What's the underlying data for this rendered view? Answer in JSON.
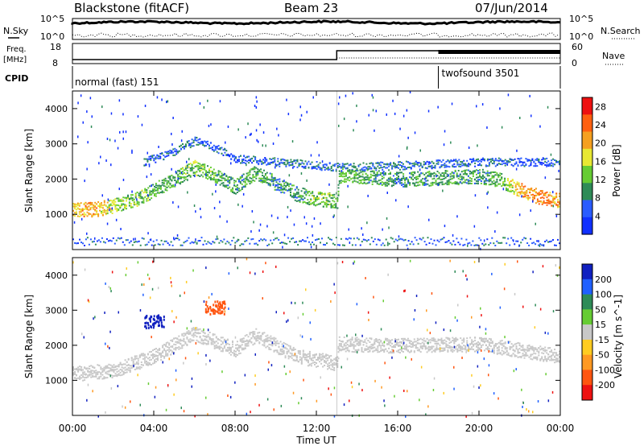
{
  "header": {
    "site": "Blackstone (fitACF)",
    "beam": "Beam 23",
    "date": "07/Jun/2014"
  },
  "top_panels": {
    "nsky_label": "N.Sky",
    "nsearch_label": "N.Search",
    "sky_ticks": [
      "10^5",
      "10^0"
    ],
    "freq_label_1": "Freq.",
    "freq_label_2": "[MHz]",
    "freq_ticks": [
      "18",
      "8"
    ],
    "nave_label": "Nave",
    "nave_ticks": [
      "60",
      "0"
    ],
    "cpid_label": "CPID",
    "cpid_segments": [
      {
        "name": "normal (fast) 151",
        "start_hour": 0,
        "end_hour": 18
      },
      {
        "name": "twofsound 3501",
        "start_hour": 18,
        "end_hour": 24
      }
    ]
  },
  "chart_data": [
    {
      "type": "heatmap",
      "title": "",
      "xlabel": "Time UT",
      "ylabel": "Slant Range [km]",
      "xlim": [
        0,
        24
      ],
      "ylim": [
        0,
        4500
      ],
      "x_ticks": [
        "00:00",
        "04:00",
        "08:00",
        "12:00",
        "16:00",
        "20:00",
        "00:00"
      ],
      "y_ticks": [
        1000,
        2000,
        3000,
        4000
      ],
      "colorbar_label": "Power [dB]",
      "colorbar_ticks": [
        4,
        8,
        12,
        16,
        20,
        24,
        28
      ],
      "colorbar_range": [
        0,
        30
      ],
      "colors": [
        "#1030ff",
        "#2a5cff",
        "#2e8b57",
        "#66cc33",
        "#e8e833",
        "#f5a020",
        "#ff6010",
        "#ee1111"
      ],
      "bands": [
        {
          "name": "main",
          "points": [
            [
              0,
              1150
            ],
            [
              1,
              1150
            ],
            [
              2,
              1250
            ],
            [
              3,
              1400
            ],
            [
              4,
              1700
            ],
            [
              5,
              2000
            ],
            [
              6,
              2350
            ],
            [
              7,
              2100
            ],
            [
              8,
              1800
            ],
            [
              9,
              2200
            ],
            [
              10,
              1900
            ],
            [
              11,
              1600
            ],
            [
              12,
              1450
            ],
            [
              13,
              1400
            ],
            [
              13.1,
              2100
            ],
            [
              14,
              2100
            ],
            [
              16,
              2000
            ],
            [
              18,
              2050
            ],
            [
              20,
              2100
            ],
            [
              21,
              2000
            ],
            [
              22,
              1700
            ],
            [
              23,
              1500
            ],
            [
              24,
              1400
            ]
          ],
          "power": [
            20,
            22,
            16,
            14,
            12,
            12,
            14,
            12,
            10,
            12,
            10,
            10,
            14,
            12,
            12,
            12,
            10,
            12,
            10,
            12,
            22,
            24,
            22
          ]
        },
        {
          "name": "upper",
          "points": [
            [
              3.5,
              2500
            ],
            [
              5,
              2800
            ],
            [
              6,
              3100
            ],
            [
              7,
              2900
            ],
            [
              8,
              2600
            ],
            [
              13.1,
              2350
            ],
            [
              16,
              2400
            ],
            [
              20,
              2500
            ],
            [
              24,
              2500
            ]
          ],
          "power": [
            6,
            6,
            8,
            6,
            6,
            8,
            8,
            6,
            6
          ]
        },
        {
          "name": "ground",
          "points": [
            [
              0,
              250
            ],
            [
              6,
              250
            ],
            [
              12,
              250
            ],
            [
              18,
              250
            ],
            [
              24,
              250
            ]
          ],
          "power": [
            6,
            6,
            8,
            6,
            6
          ]
        }
      ]
    },
    {
      "type": "heatmap",
      "title": "",
      "xlabel": "Time UT",
      "ylabel": "Slant Range [km]",
      "xlim": [
        0,
        24
      ],
      "ylim": [
        0,
        4500
      ],
      "x_ticks": [
        "00:00",
        "04:00",
        "08:00",
        "12:00",
        "16:00",
        "20:00",
        "00:00"
      ],
      "y_ticks": [
        1000,
        2000,
        3000,
        4000
      ],
      "colorbar_label": "Velocity [m s^-1]",
      "colorbar_ticks": [
        200,
        100,
        50,
        15,
        -15,
        -50,
        -100,
        -200
      ],
      "colors": [
        "#1020c0",
        "#2060ff",
        "#2e8b57",
        "#66cc33",
        "#c8c8c8",
        "#ffcc22",
        "#ff9922",
        "#ff5510",
        "#ee1111"
      ],
      "bands": [
        {
          "name": "main",
          "points": [
            [
              0,
              1200
            ],
            [
              2,
              1300
            ],
            [
              4,
              1700
            ],
            [
              6,
              2350
            ],
            [
              8,
              1900
            ],
            [
              9,
              2300
            ],
            [
              11,
              1700
            ],
            [
              13,
              1500
            ],
            [
              13.1,
              2050
            ],
            [
              16,
              2000
            ],
            [
              20,
              2050
            ],
            [
              24,
              1700
            ]
          ],
          "velocity": [
            0,
            0,
            0,
            0,
            0,
            0,
            0,
            0,
            0,
            0,
            0,
            0
          ]
        },
        {
          "name": "clutter_blue",
          "points": [
            [
              4,
              2700
            ]
          ],
          "velocity": [
            200
          ]
        },
        {
          "name": "clutter_orange",
          "points": [
            [
              7,
              3100
            ]
          ],
          "velocity": [
            -100
          ]
        }
      ]
    }
  ]
}
